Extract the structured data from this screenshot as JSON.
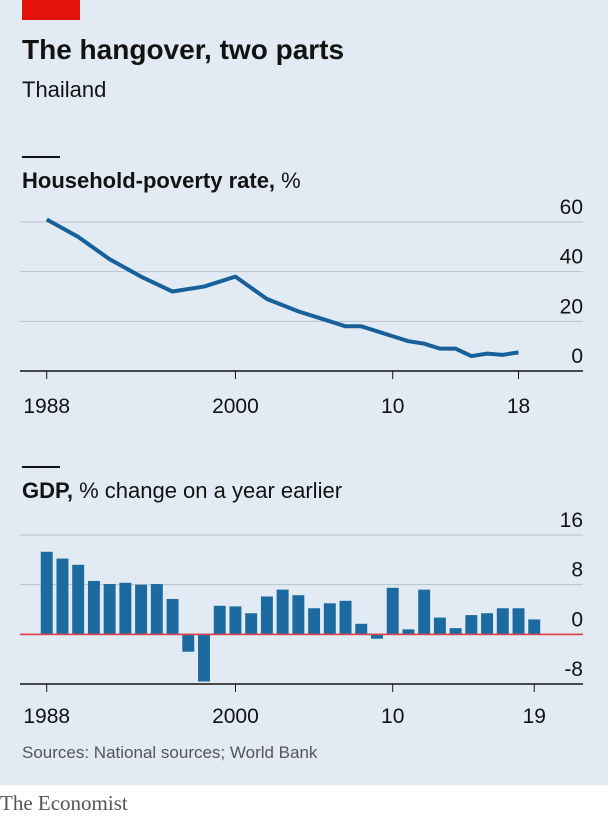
{
  "header": {
    "title": "The hangover, two parts",
    "subtitle": "Thailand"
  },
  "chart_data": [
    {
      "type": "line",
      "title": "Household-poverty rate,",
      "unit": "%",
      "color": "#17609a",
      "x": [
        1988,
        1990,
        1992,
        1994,
        1996,
        1998,
        2000,
        2002,
        2004,
        2006,
        2007,
        2008,
        2009,
        2010,
        2011,
        2012,
        2013,
        2014,
        2015,
        2016,
        2017,
        2018
      ],
      "values": [
        61,
        54,
        45,
        38,
        32,
        34,
        38,
        29,
        24,
        20,
        18,
        18,
        16,
        14,
        12,
        11,
        9,
        9,
        6,
        7,
        6.5,
        7.5
      ],
      "xlim": [
        1986.3,
        2022.1
      ],
      "xticks": [
        1988,
        2000,
        {
          "value": 2010,
          "label": "10"
        },
        {
          "value": 2018,
          "label": "18"
        }
      ],
      "ylim": [
        0,
        60
      ],
      "yticks": [
        0,
        20,
        40,
        60
      ],
      "grid": true
    },
    {
      "type": "bar",
      "title": "GDP,",
      "unit": "% change on a year earlier",
      "color": "#1d6aa0",
      "zero_line": "#db444b",
      "x": [
        1988,
        1989,
        1990,
        1991,
        1992,
        1993,
        1994,
        1995,
        1996,
        1997,
        1998,
        1999,
        2000,
        2001,
        2002,
        2003,
        2004,
        2005,
        2006,
        2007,
        2008,
        2009,
        2010,
        2011,
        2012,
        2013,
        2014,
        2015,
        2016,
        2017,
        2018,
        2019
      ],
      "values": [
        13.3,
        12.2,
        11.2,
        8.6,
        8.1,
        8.3,
        8.0,
        8.1,
        5.7,
        -2.8,
        -7.6,
        4.6,
        4.5,
        3.4,
        6.1,
        7.2,
        6.3,
        4.2,
        5.0,
        5.4,
        1.7,
        -0.7,
        7.5,
        0.8,
        7.2,
        2.7,
        1.0,
        3.1,
        3.4,
        4.2,
        4.2,
        2.4
      ],
      "xlim": [
        1986.3,
        2022.1
      ],
      "xticks": [
        1988,
        2000,
        {
          "value": 2010,
          "label": "10"
        },
        {
          "value": 2019,
          "label": "19"
        }
      ],
      "ylim": [
        -8,
        16
      ],
      "yticks": [
        -8,
        0,
        8,
        16
      ],
      "grid": true
    }
  ],
  "footer": {
    "source": "Sources: National sources; World Bank",
    "brand": "The Economist"
  }
}
